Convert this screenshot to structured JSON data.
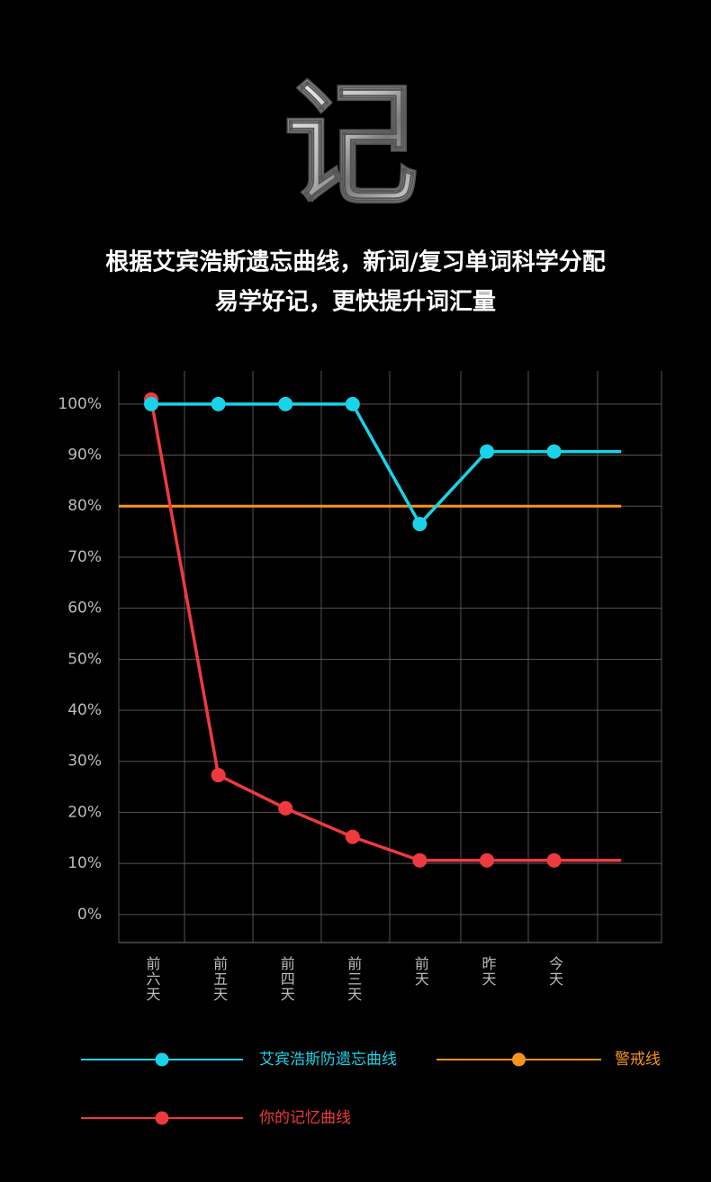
{
  "headline": "记",
  "subtitle": [
    "根据艾宾浩斯遗忘曲线，新词/复习单词科学分配",
    "易学好记，更快提升词汇量"
  ],
  "chart_data": {
    "type": "line",
    "categories": [
      "前六天",
      "前五天",
      "前四天",
      "前三天",
      "前天",
      "昨天",
      "今天",
      null
    ],
    "series": [
      {
        "name": "艾宾浩斯防遗忘曲线",
        "color": "#19d3e8",
        "values": [
          100,
          100,
          100,
          100,
          76.5,
          90.7,
          90.7,
          90.7
        ]
      },
      {
        "name": "你的记忆曲线",
        "color": "#ee3a3f",
        "values": [
          100.9,
          27.3,
          20.8,
          15.2,
          10.6,
          10.6,
          10.6,
          10.6
        ]
      }
    ],
    "reference_line": {
      "name": "警戒线",
      "color": "#f7941d",
      "value": 80
    },
    "ylim": [
      -5.5,
      106.5
    ],
    "yticks": [
      {
        "value": 0,
        "label": "0%"
      },
      {
        "value": 10,
        "label": "10%"
      },
      {
        "value": 20,
        "label": "20%"
      },
      {
        "value": 30,
        "label": "30%"
      },
      {
        "value": 40,
        "label": "40%"
      },
      {
        "value": 50,
        "label": "50%"
      },
      {
        "value": 60,
        "label": "60%"
      },
      {
        "value": 70,
        "label": "70%"
      },
      {
        "value": 80,
        "label": "80%"
      },
      {
        "value": 90,
        "label": "90%"
      },
      {
        "value": 100,
        "label": "100%"
      }
    ],
    "grid": true
  }
}
